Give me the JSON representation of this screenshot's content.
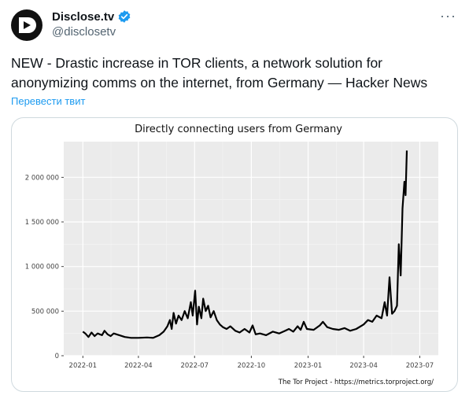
{
  "author": {
    "name": "Disclose.tv",
    "handle": "@disclosetv",
    "verified_color": "#1d9bf0"
  },
  "tweet": {
    "text": "NEW - Drastic increase in TOR clients, a network solution for anonymizing comms on the internet, from Germany — Hacker News",
    "translate_label": "Перевести твит",
    "more_label": "···"
  },
  "chart_data": {
    "type": "line",
    "title": "Directly connecting users from Germany",
    "source_note": "The Tor Project - https://metrics.torproject.org/",
    "x_ticks": [
      "2022-01",
      "2022-04",
      "2022-07",
      "2022-10",
      "2023-01",
      "2023-04",
      "2023-07"
    ],
    "y_ticks": [
      "0",
      "500 000",
      "1 000 000",
      "1 500 000",
      "2 000 000"
    ],
    "ylim": [
      0,
      2400000
    ],
    "xlim": [
      "2021-12-01",
      "2023-07-31"
    ],
    "grid": true,
    "series": [
      {
        "color": "#000000",
        "points": [
          [
            "2022-01-01",
            270000
          ],
          [
            "2022-01-05",
            250000
          ],
          [
            "2022-01-10",
            210000
          ],
          [
            "2022-01-15",
            260000
          ],
          [
            "2022-01-20",
            220000
          ],
          [
            "2022-01-25",
            250000
          ],
          [
            "2022-02-01",
            230000
          ],
          [
            "2022-02-05",
            280000
          ],
          [
            "2022-02-10",
            240000
          ],
          [
            "2022-02-15",
            220000
          ],
          [
            "2022-02-20",
            250000
          ],
          [
            "2022-03-01",
            230000
          ],
          [
            "2022-03-10",
            210000
          ],
          [
            "2022-03-20",
            200000
          ],
          [
            "2022-04-01",
            200000
          ],
          [
            "2022-04-15",
            205000
          ],
          [
            "2022-04-25",
            200000
          ],
          [
            "2022-05-05",
            230000
          ],
          [
            "2022-05-12",
            270000
          ],
          [
            "2022-05-18",
            330000
          ],
          [
            "2022-05-22",
            400000
          ],
          [
            "2022-05-25",
            300000
          ],
          [
            "2022-05-28",
            480000
          ],
          [
            "2022-06-01",
            360000
          ],
          [
            "2022-06-05",
            450000
          ],
          [
            "2022-06-10",
            400000
          ],
          [
            "2022-06-15",
            500000
          ],
          [
            "2022-06-20",
            420000
          ],
          [
            "2022-06-25",
            600000
          ],
          [
            "2022-06-28",
            450000
          ],
          [
            "2022-07-02",
            730000
          ],
          [
            "2022-07-05",
            350000
          ],
          [
            "2022-07-08",
            550000
          ],
          [
            "2022-07-12",
            420000
          ],
          [
            "2022-07-15",
            640000
          ],
          [
            "2022-07-19",
            500000
          ],
          [
            "2022-07-23",
            560000
          ],
          [
            "2022-07-27",
            430000
          ],
          [
            "2022-08-01",
            500000
          ],
          [
            "2022-08-06",
            400000
          ],
          [
            "2022-08-11",
            350000
          ],
          [
            "2022-08-16",
            320000
          ],
          [
            "2022-08-22",
            300000
          ],
          [
            "2022-08-28",
            330000
          ],
          [
            "2022-09-05",
            280000
          ],
          [
            "2022-09-12",
            260000
          ],
          [
            "2022-09-20",
            300000
          ],
          [
            "2022-09-28",
            260000
          ],
          [
            "2022-10-03",
            340000
          ],
          [
            "2022-10-08",
            240000
          ],
          [
            "2022-10-15",
            250000
          ],
          [
            "2022-10-25",
            230000
          ],
          [
            "2022-11-05",
            270000
          ],
          [
            "2022-11-15",
            250000
          ],
          [
            "2022-11-25",
            280000
          ],
          [
            "2022-12-01",
            300000
          ],
          [
            "2022-12-08",
            270000
          ],
          [
            "2022-12-15",
            330000
          ],
          [
            "2022-12-20",
            290000
          ],
          [
            "2022-12-25",
            380000
          ],
          [
            "2022-12-30",
            300000
          ],
          [
            "2023-01-10",
            290000
          ],
          [
            "2023-01-20",
            340000
          ],
          [
            "2023-01-25",
            380000
          ],
          [
            "2023-02-01",
            320000
          ],
          [
            "2023-02-10",
            300000
          ],
          [
            "2023-02-20",
            290000
          ],
          [
            "2023-03-01",
            310000
          ],
          [
            "2023-03-10",
            280000
          ],
          [
            "2023-03-20",
            300000
          ],
          [
            "2023-04-01",
            350000
          ],
          [
            "2023-04-08",
            400000
          ],
          [
            "2023-04-15",
            380000
          ],
          [
            "2023-04-22",
            450000
          ],
          [
            "2023-04-30",
            420000
          ],
          [
            "2023-05-05",
            600000
          ],
          [
            "2023-05-09",
            450000
          ],
          [
            "2023-05-13",
            880000
          ],
          [
            "2023-05-17",
            470000
          ],
          [
            "2023-05-21",
            500000
          ],
          [
            "2023-05-25",
            560000
          ],
          [
            "2023-05-28",
            1250000
          ],
          [
            "2023-05-31",
            900000
          ],
          [
            "2023-06-03",
            1650000
          ],
          [
            "2023-06-06",
            1950000
          ],
          [
            "2023-06-08",
            1800000
          ],
          [
            "2023-06-10",
            2300000
          ]
        ]
      }
    ]
  }
}
